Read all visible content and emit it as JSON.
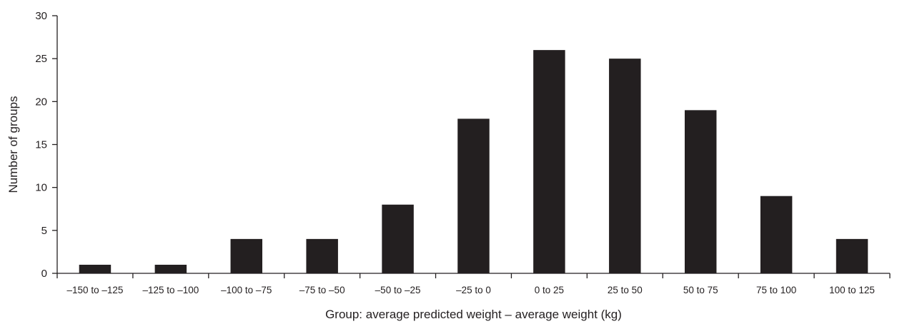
{
  "chart_data": {
    "type": "bar",
    "xlabel": "Group: average predicted weight – average weight (kg)",
    "ylabel": "Number of groups",
    "ylim": [
      0,
      30
    ],
    "yticks": [
      0,
      5,
      10,
      15,
      20,
      25,
      30
    ],
    "categories": [
      "–150 to –125",
      "–125 to –100",
      "–100 to –75",
      "–75 to –50",
      "–50 to –25",
      "–25 to 0",
      "0 to 25",
      "25 to 50",
      "50 to 75",
      "75 to 100",
      "100 to 125"
    ],
    "values": [
      1,
      1,
      4,
      4,
      8,
      18,
      26,
      25,
      19,
      9,
      4
    ],
    "bar_color": "#231f20",
    "grid": false,
    "legend": "none"
  }
}
